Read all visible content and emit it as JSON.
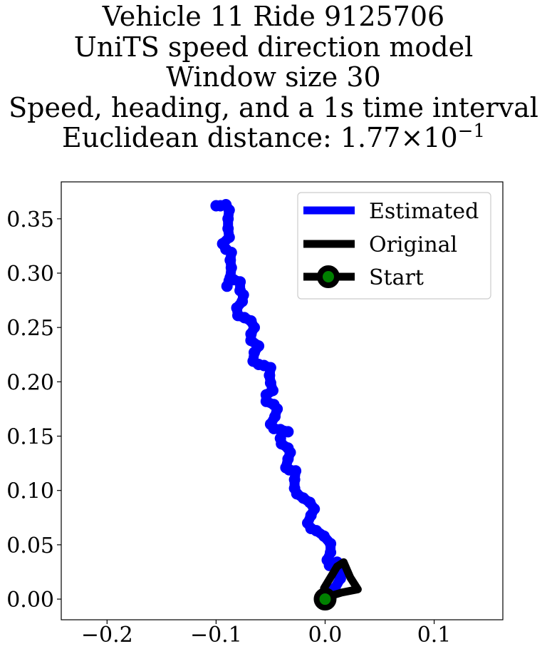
{
  "chart_data": {
    "type": "line",
    "title_lines": [
      "Vehicle 11 Ride 9125706",
      "UniTS speed direction model",
      "Window size 30",
      "Speed, heading, and a 1s time interval"
    ],
    "distance_label": "Euclidean distance: 1.77",
    "distance_times": "×",
    "distance_base": "10",
    "distance_exponent": "−1",
    "xlabel": "",
    "ylabel": "",
    "xlim": [
      -0.242,
      0.163
    ],
    "ylim": [
      -0.019,
      0.384
    ],
    "xticks": [
      -0.2,
      -0.1,
      0.0,
      0.1
    ],
    "xtick_labels": [
      "−0.2",
      "−0.1",
      "0.0",
      "0.1"
    ],
    "yticks": [
      0.0,
      0.05,
      0.1,
      0.15,
      0.2,
      0.25,
      0.3,
      0.35
    ],
    "ytick_labels": [
      "0.00",
      "0.05",
      "0.10",
      "0.15",
      "0.20",
      "0.25",
      "0.30",
      "0.35"
    ],
    "grid": false,
    "legend_position": "top-right",
    "series": [
      {
        "name": "Estimated",
        "color": "#0000ff",
        "points": [
          [
            0.0,
            0.0
          ],
          [
            0.004,
            0.005
          ],
          [
            0.009,
            0.01
          ],
          [
            0.014,
            0.019
          ],
          [
            0.016,
            0.03
          ],
          [
            0.011,
            0.034
          ],
          [
            0.004,
            0.031
          ],
          [
            0.002,
            0.036
          ],
          [
            0.005,
            0.043
          ],
          [
            0.005,
            0.051
          ],
          [
            -0.001,
            0.058
          ],
          [
            -0.008,
            0.063
          ],
          [
            -0.013,
            0.065
          ],
          [
            -0.016,
            0.07
          ],
          [
            -0.013,
            0.077
          ],
          [
            -0.01,
            0.083
          ],
          [
            -0.014,
            0.089
          ],
          [
            -0.02,
            0.093
          ],
          [
            -0.026,
            0.097
          ],
          [
            -0.028,
            0.102
          ],
          [
            -0.028,
            0.11
          ],
          [
            -0.027,
            0.118
          ],
          [
            -0.033,
            0.119
          ],
          [
            -0.036,
            0.121
          ],
          [
            -0.034,
            0.129
          ],
          [
            -0.032,
            0.135
          ],
          [
            -0.034,
            0.139
          ],
          [
            -0.04,
            0.143
          ],
          [
            -0.041,
            0.148
          ],
          [
            -0.039,
            0.154
          ],
          [
            -0.034,
            0.154
          ],
          [
            -0.041,
            0.156
          ],
          [
            -0.047,
            0.157
          ],
          [
            -0.05,
            0.161
          ],
          [
            -0.046,
            0.168
          ],
          [
            -0.044,
            0.175
          ],
          [
            -0.047,
            0.179
          ],
          [
            -0.054,
            0.182
          ],
          [
            -0.054,
            0.188
          ],
          [
            -0.048,
            0.192
          ],
          [
            -0.05,
            0.199
          ],
          [
            -0.051,
            0.206
          ],
          [
            -0.05,
            0.213
          ],
          [
            -0.056,
            0.215
          ],
          [
            -0.061,
            0.216
          ],
          [
            -0.066,
            0.219
          ],
          [
            -0.065,
            0.227
          ],
          [
            -0.061,
            0.233
          ],
          [
            -0.068,
            0.238
          ],
          [
            -0.068,
            0.244
          ],
          [
            -0.065,
            0.25
          ],
          [
            -0.068,
            0.256
          ],
          [
            -0.074,
            0.259
          ],
          [
            -0.08,
            0.261
          ],
          [
            -0.081,
            0.268
          ],
          [
            -0.076,
            0.274
          ],
          [
            -0.075,
            0.28
          ],
          [
            -0.078,
            0.284
          ],
          [
            -0.078,
            0.292
          ],
          [
            -0.084,
            0.294
          ],
          [
            -0.088,
            0.293
          ],
          [
            -0.09,
            0.288
          ],
          [
            -0.087,
            0.296
          ],
          [
            -0.086,
            0.305
          ],
          [
            -0.087,
            0.312
          ],
          [
            -0.086,
            0.319
          ],
          [
            -0.091,
            0.322
          ],
          [
            -0.094,
            0.327
          ],
          [
            -0.088,
            0.333
          ],
          [
            -0.089,
            0.341
          ],
          [
            -0.089,
            0.35
          ],
          [
            -0.088,
            0.358
          ],
          [
            -0.091,
            0.363
          ],
          [
            -0.096,
            0.362
          ],
          [
            -0.1,
            0.362
          ]
        ]
      },
      {
        "name": "Original",
        "color": "#000000",
        "points": [
          [
            0.0,
            0.0
          ],
          [
            -0.001,
            0.01
          ],
          [
            0.005,
            0.02
          ],
          [
            0.011,
            0.03
          ],
          [
            0.017,
            0.034
          ],
          [
            0.023,
            0.02
          ],
          [
            0.03,
            0.009
          ],
          [
            0.015,
            0.006
          ],
          [
            0.002,
            0.002
          ]
        ]
      }
    ],
    "start": {
      "name": "Start",
      "point": [
        0.0,
        0.0
      ],
      "marker_face_color": "#008000",
      "marker_edge_color": "#000000"
    }
  }
}
